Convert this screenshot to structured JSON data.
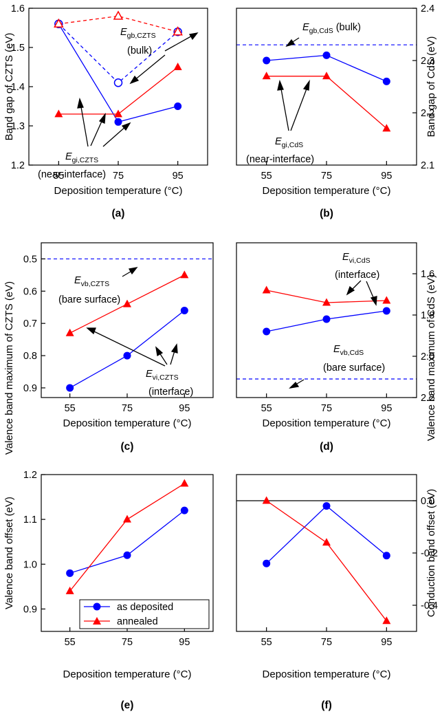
{
  "colors": {
    "as_deposited": "#0000ff",
    "annealed": "#ff0000",
    "axis": "#000000"
  },
  "chart_data": [
    {
      "panel": "(a)",
      "type": "line",
      "x": [
        55,
        75,
        95
      ],
      "xlabel": "Deposition temperature (°C)",
      "ylabel": "Band gap of CZTS (eV)",
      "ylim": [
        1.2,
        1.6
      ],
      "yticks": [
        "1.2",
        "1.3",
        "1.4",
        "1.5",
        "1.6"
      ],
      "xticks": [
        "55",
        "75",
        "95"
      ],
      "y_axis_side": "left",
      "y_inverted": false,
      "series": [
        {
          "key": "as_deposited_near_interface",
          "values": [
            1.56,
            1.31,
            1.35
          ],
          "color": "#0000ff",
          "marker": "circle",
          "dashed": false,
          "filled": true
        },
        {
          "key": "annealed_near_interface",
          "values": [
            1.33,
            1.33,
            1.45
          ],
          "color": "#ff0000",
          "marker": "triangle",
          "dashed": false,
          "filled": true
        },
        {
          "key": "as_deposited_bulk",
          "values": [
            1.56,
            1.41,
            1.54
          ],
          "color": "#0000ff",
          "marker": "circle",
          "dashed": true,
          "filled": false
        },
        {
          "key": "annealed_bulk",
          "values": [
            1.56,
            1.58,
            1.54
          ],
          "color": "#ff0000",
          "marker": "triangle",
          "dashed": true,
          "filled": false
        }
      ],
      "annotations": [
        {
          "main": "E",
          "sub": "gb,CZTS",
          "line2": "(bulk)"
        },
        {
          "main": "E",
          "sub": "gi,CZTS",
          "line2": "(near-interface)"
        }
      ]
    },
    {
      "panel": "(b)",
      "type": "line",
      "x": [
        55,
        75,
        95
      ],
      "xlabel": "Deposition temperature (°C)",
      "ylabel": "Band gap of CdS (eV)",
      "ylim": [
        2.1,
        2.4
      ],
      "yticks": [
        "2.1",
        "2.2",
        "2.3",
        "2.4"
      ],
      "xticks": [
        "55",
        "75",
        "95"
      ],
      "y_axis_side": "right",
      "y_inverted": false,
      "series": [
        {
          "key": "as_deposited",
          "values": [
            2.3,
            2.31,
            2.26
          ],
          "color": "#0000ff",
          "marker": "circle",
          "dashed": false,
          "filled": true
        },
        {
          "key": "annealed",
          "values": [
            2.27,
            2.27,
            2.17
          ],
          "color": "#ff0000",
          "marker": "triangle",
          "dashed": false,
          "filled": true
        }
      ],
      "reference_lines": [
        {
          "y": 2.33,
          "color": "#0000ff",
          "dashed": true
        }
      ],
      "annotations": [
        {
          "main": "E",
          "sub": "gb,CdS",
          "line2": " (bulk)"
        },
        {
          "main": "E",
          "sub": "gi,CdS",
          "line2": "(near-interface)"
        }
      ]
    },
    {
      "panel": "(c)",
      "type": "line",
      "x": [
        55,
        75,
        95
      ],
      "xlabel": "Deposition temperature (°C)",
      "ylabel": "Valence band maximum of CZTS (eV)",
      "ylim": [
        0.45,
        0.93
      ],
      "yticks": [
        "0.5",
        "0.6",
        "0.7",
        "0.8",
        "0.9"
      ],
      "ytick_values": [
        0.5,
        0.6,
        0.7,
        0.8,
        0.9
      ],
      "xticks": [
        "55",
        "75",
        "95"
      ],
      "y_axis_side": "left",
      "y_inverted": true,
      "series": [
        {
          "key": "as_deposited",
          "values": [
            0.9,
            0.8,
            0.66
          ],
          "color": "#0000ff",
          "marker": "circle",
          "dashed": false,
          "filled": true
        },
        {
          "key": "annealed",
          "values": [
            0.73,
            0.64,
            0.55
          ],
          "color": "#ff0000",
          "marker": "triangle",
          "dashed": false,
          "filled": true
        }
      ],
      "reference_lines": [
        {
          "y": 0.5,
          "color": "#0000ff",
          "dashed": true
        }
      ],
      "annotations": [
        {
          "main": "E",
          "sub": "vb,CZTS",
          "line2": "(bare surface)"
        },
        {
          "main": "E",
          "sub": "vi,CZTS",
          "line2": "(interface)"
        }
      ]
    },
    {
      "panel": "(d)",
      "type": "line",
      "x": [
        55,
        75,
        95
      ],
      "xlabel": "Deposition temperature (°C)",
      "ylabel": "Valence band maximum of CdS (eV)",
      "ylim": [
        1.45,
        2.2
      ],
      "yticks": [
        "1.6",
        "1.8",
        "2.0",
        "2.2"
      ],
      "ytick_values": [
        1.6,
        1.8,
        2.0,
        2.2
      ],
      "xticks": [
        "55",
        "75",
        "95"
      ],
      "y_axis_side": "right",
      "y_inverted": true,
      "series": [
        {
          "key": "as_deposited",
          "values": [
            1.88,
            1.82,
            1.78
          ],
          "color": "#0000ff",
          "marker": "circle",
          "dashed": false,
          "filled": true
        },
        {
          "key": "annealed",
          "values": [
            1.68,
            1.74,
            1.73
          ],
          "color": "#ff0000",
          "marker": "triangle",
          "dashed": false,
          "filled": true
        }
      ],
      "reference_lines": [
        {
          "y": 2.11,
          "color": "#0000ff",
          "dashed": true
        }
      ],
      "annotations": [
        {
          "main": "E",
          "sub": "vi,CdS",
          "line2": "(interface)"
        },
        {
          "main": "E",
          "sub": "vb,CdS",
          "line2": "(bare surface)"
        }
      ]
    },
    {
      "panel": "(e)",
      "type": "line",
      "x": [
        55,
        75,
        95
      ],
      "xlabel": "Deposition temperature (°C)",
      "ylabel": "Valence band offset (eV)",
      "ylim": [
        0.85,
        1.2
      ],
      "yticks": [
        "0.9",
        "1.0",
        "1.1",
        "1.2"
      ],
      "ytick_values": [
        0.9,
        1.0,
        1.1,
        1.2
      ],
      "xticks": [
        "55",
        "75",
        "95"
      ],
      "y_axis_side": "left",
      "y_inverted": false,
      "series": [
        {
          "key": "as_deposited",
          "name": "as deposited",
          "values": [
            0.98,
            1.02,
            1.12
          ],
          "color": "#0000ff",
          "marker": "circle",
          "dashed": false,
          "filled": true
        },
        {
          "key": "annealed",
          "name": "annealed",
          "values": [
            0.94,
            1.1,
            1.18
          ],
          "color": "#ff0000",
          "marker": "triangle",
          "dashed": false,
          "filled": true
        }
      ],
      "legend": {
        "position": "bottom-right",
        "entries": [
          "as deposited",
          "annealed"
        ]
      }
    },
    {
      "panel": "(f)",
      "type": "line",
      "x": [
        55,
        75,
        95
      ],
      "xlabel": "Deposition temperature (°C)",
      "ylabel": "Conduction band offset (eV)",
      "ylim": [
        -0.5,
        0.1
      ],
      "yticks": [
        "0.0",
        "-0.2",
        "-0.4"
      ],
      "ytick_values": [
        0.0,
        -0.2,
        -0.4
      ],
      "xticks": [
        "55",
        "75",
        "95"
      ],
      "y_axis_side": "right",
      "y_inverted": false,
      "series": [
        {
          "key": "as_deposited",
          "values": [
            -0.24,
            -0.02,
            -0.21
          ],
          "color": "#0000ff",
          "marker": "circle",
          "dashed": false,
          "filled": true
        },
        {
          "key": "annealed",
          "values": [
            0.0,
            -0.16,
            -0.46
          ],
          "color": "#ff0000",
          "marker": "triangle",
          "dashed": false,
          "filled": true
        }
      ],
      "reference_lines": [
        {
          "y": 0.0,
          "color": "#000000",
          "dashed": false
        }
      ]
    }
  ]
}
